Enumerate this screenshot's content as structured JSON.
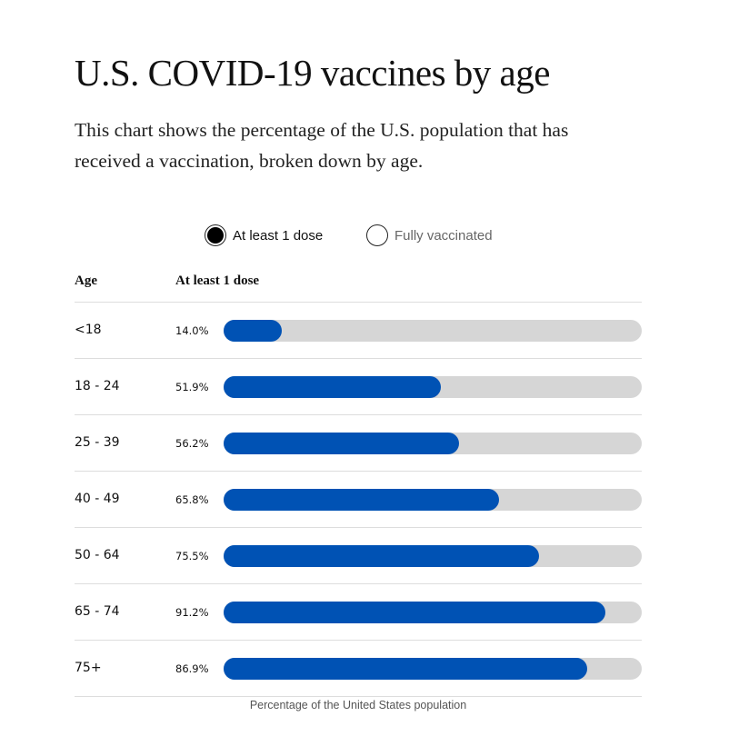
{
  "header": {
    "title": "U.S. COVID-19 vaccines by age",
    "subtitle": "This chart shows the percentage of the U.S. population that has received a vaccination, broken down by age."
  },
  "toggle": {
    "options": [
      {
        "label": "At least 1 dose",
        "selected": true
      },
      {
        "label": "Fully vaccinated",
        "selected": false
      }
    ]
  },
  "table": {
    "col_age": "Age",
    "col_series": "At least 1 dose"
  },
  "footer": {
    "caption": "Percentage of the United States population"
  },
  "colors": {
    "bar": "#0052b4",
    "track": "#d6d6d6",
    "rule": "#dddddd"
  },
  "chart_data": {
    "type": "bar",
    "orientation": "horizontal",
    "title": "U.S. COVID-19 vaccines by age",
    "xlabel": "Percentage of the United States population",
    "ylabel": "Age",
    "xlim": [
      0,
      100
    ],
    "categories": [
      "<18",
      "18 - 24",
      "25 - 39",
      "40 - 49",
      "50 - 64",
      "65 - 74",
      "75+"
    ],
    "series": [
      {
        "name": "At least 1 dose",
        "values": [
          14.0,
          51.9,
          56.2,
          65.8,
          75.5,
          91.2,
          86.9
        ],
        "labels": [
          "14.0%",
          "51.9%",
          "56.2%",
          "65.8%",
          "75.5%",
          "91.2%",
          "86.9%"
        ]
      }
    ]
  }
}
